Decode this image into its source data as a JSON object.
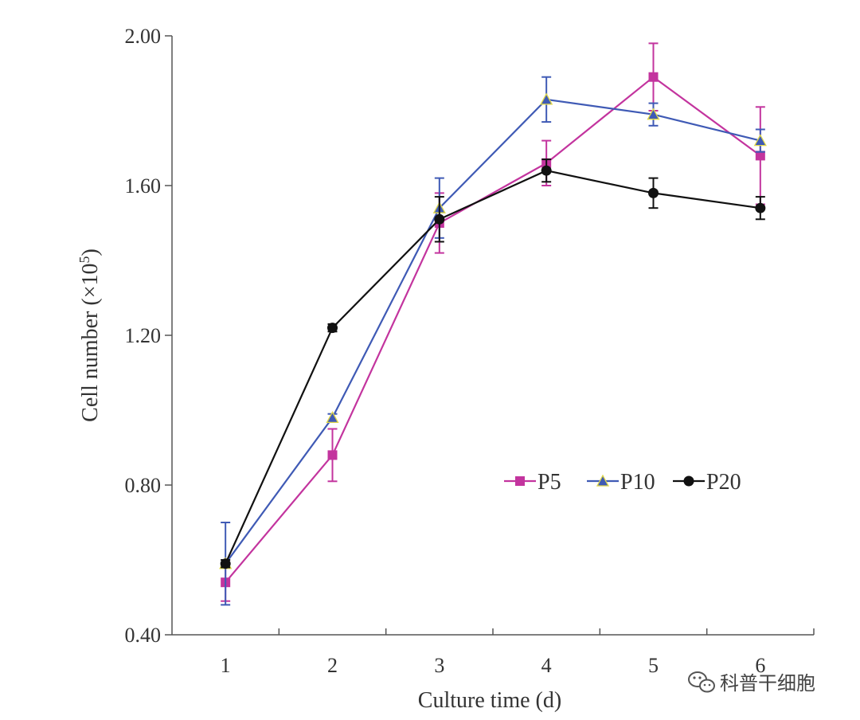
{
  "chart_data": {
    "type": "line",
    "title": "",
    "xlabel": "Culture time (d)",
    "ylabel_main": "Cell number (×10",
    "ylabel_sup": "5",
    "ylabel_end": ")",
    "x": [
      1,
      2,
      3,
      4,
      5,
      6
    ],
    "x_tick_labels": [
      "1",
      "2",
      "3",
      "4",
      "5",
      "6"
    ],
    "xlim": [
      0.5,
      6.5
    ],
    "ylim": [
      0.4,
      2.0
    ],
    "y_ticks": [
      0.4,
      0.8,
      1.2,
      1.6,
      2.0
    ],
    "y_tick_labels": [
      "0.40",
      "0.80",
      "1.20",
      "1.60",
      "2.00"
    ],
    "grid": false,
    "legend_position": "center-right",
    "series": [
      {
        "name": "P5",
        "color": "#c3349e",
        "marker": "square",
        "values": [
          0.54,
          0.88,
          1.5,
          1.66,
          1.89,
          1.68
        ],
        "errors": [
          0.05,
          0.07,
          0.08,
          0.06,
          0.09,
          0.13
        ]
      },
      {
        "name": "P10",
        "color": "#3f5ab5",
        "marker": "triangle",
        "values": [
          0.59,
          0.98,
          1.54,
          1.83,
          1.79,
          1.72
        ],
        "errors": [
          0.11,
          0.01,
          0.08,
          0.06,
          0.03,
          0.03
        ]
      },
      {
        "name": "P20",
        "color": "#111111",
        "marker": "circle",
        "values": [
          0.59,
          1.22,
          1.51,
          1.64,
          1.58,
          1.54
        ],
        "errors": [
          0.01,
          0.01,
          0.06,
          0.03,
          0.04,
          0.03
        ]
      }
    ]
  },
  "watermark": {
    "text": "科普干细胞",
    "icon": "wechat-icon"
  }
}
